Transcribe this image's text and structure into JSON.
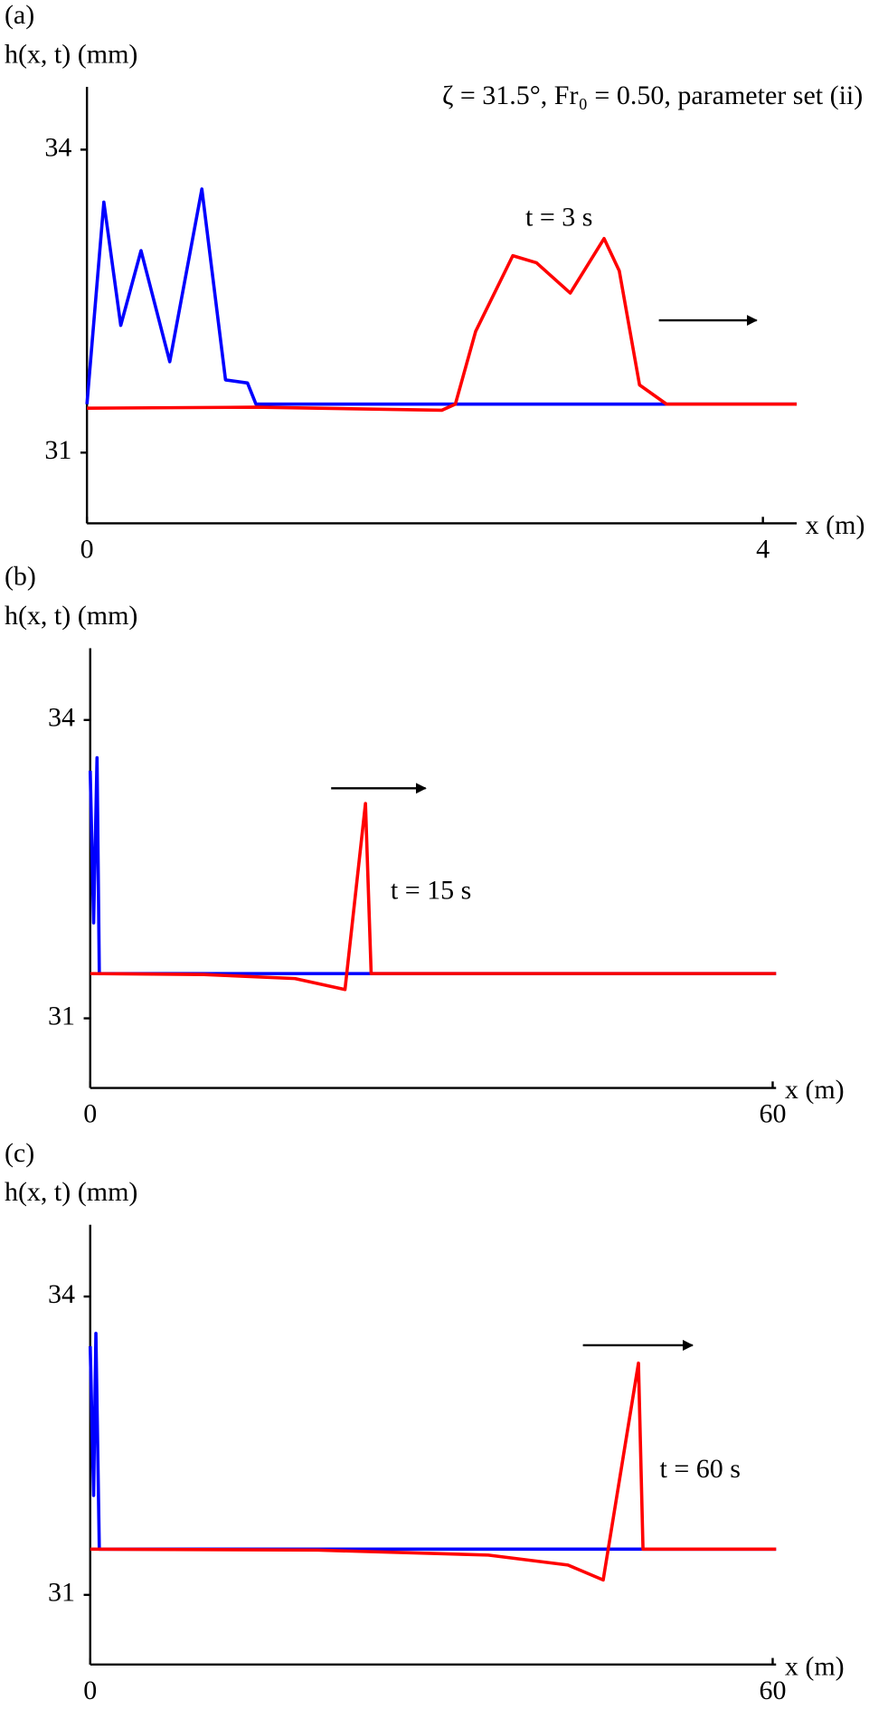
{
  "chart_data": [
    {
      "type": "line",
      "panel_label": "(a)",
      "y_label": "h(x, t) (mm)",
      "x_label": "x (m)",
      "title": "ζ = 31.5°, Fr₀ = 0.50, parameter set (ii)",
      "annotation": "t = 3 s",
      "xlim": [
        0,
        4.2
      ],
      "ylim": [
        30.3,
        34.6
      ],
      "xticks": [
        0,
        4
      ],
      "yticks": [
        31,
        34
      ],
      "series": [
        {
          "color": "#0000ff",
          "x": [
            0,
            0.1,
            0.2,
            0.32,
            0.49,
            0.68,
            0.82,
            0.95,
            1.0,
            4.2
          ],
          "values": [
            31.48,
            33.48,
            32.26,
            33.0,
            31.9,
            33.61,
            31.72,
            31.69,
            31.48,
            31.48
          ]
        },
        {
          "color": "#ff0000",
          "x": [
            0,
            1.0,
            2.1,
            2.18,
            2.3,
            2.52,
            2.66,
            2.86,
            3.06,
            3.15,
            3.27,
            3.43,
            4.2
          ],
          "values": [
            31.44,
            31.45,
            31.42,
            31.48,
            32.2,
            32.95,
            32.88,
            32.58,
            33.12,
            32.8,
            31.67,
            31.48,
            31.48
          ]
        }
      ]
    },
    {
      "type": "line",
      "panel_label": "(b)",
      "y_label": "h(x, t) (mm)",
      "x_label": "x (m)",
      "annotation": "t = 15 s",
      "xlim": [
        0,
        60.3
      ],
      "ylim": [
        30.3,
        34.7
      ],
      "xticks": [
        0,
        60
      ],
      "yticks": [
        31,
        34
      ],
      "series": [
        {
          "color": "#0000ff",
          "x": [
            0,
            0.3,
            0.6,
            0.8,
            60.3
          ],
          "values": [
            33.49,
            31.96,
            33.62,
            31.45,
            31.45
          ]
        },
        {
          "color": "#ff0000",
          "x": [
            0,
            10,
            18,
            22.4,
            24.2,
            24.7,
            60.3
          ],
          "values": [
            31.45,
            31.44,
            31.4,
            31.29,
            33.16,
            31.45,
            31.45
          ]
        }
      ]
    },
    {
      "type": "line",
      "panel_label": "(c)",
      "y_label": "h(x, t) (mm)",
      "x_label": "x (m)",
      "annotation": "t = 60 s",
      "xlim": [
        0,
        60.3
      ],
      "ylim": [
        30.3,
        34.7
      ],
      "xticks": [
        0,
        60
      ],
      "yticks": [
        31,
        34
      ],
      "series": [
        {
          "color": "#0000ff",
          "x": [
            0,
            0.3,
            0.5,
            0.8,
            60.3
          ],
          "values": [
            33.5,
            32.0,
            33.63,
            31.46,
            31.46
          ]
        },
        {
          "color": "#ff0000",
          "x": [
            0,
            20,
            35,
            42,
            45.1,
            48.2,
            48.6,
            60.3
          ],
          "values": [
            31.46,
            31.45,
            31.4,
            31.3,
            31.15,
            33.33,
            31.46,
            31.46
          ]
        }
      ]
    }
  ]
}
